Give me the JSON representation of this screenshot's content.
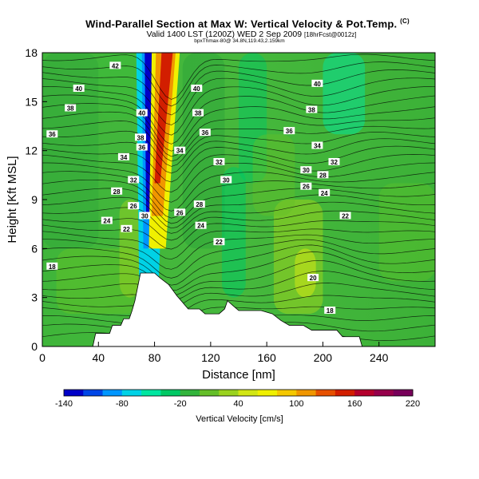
{
  "chart_data": {
    "type": "heatmap",
    "title": "Wind-Parallel Section at Max W: Vertical Velocity & Pot.Temp.",
    "title_mark": "(C)",
    "subtitle": "Valid 1400 LST (1200Z) WED 2 Sep 2009",
    "subtitle_run": "[18hrFcst@0012z]",
    "credit": "bpxThmax-80@ 34.8N,119.43,2.159km",
    "xlabel": "Distance [nm]",
    "ylabel": "Height [Kft MSL]",
    "xlim": [
      0,
      280
    ],
    "ylim": [
      0,
      18
    ],
    "xticks": [
      0,
      40,
      80,
      120,
      160,
      200,
      240
    ],
    "yticks": [
      0,
      3,
      6,
      9,
      12,
      15,
      18
    ],
    "colorbar": {
      "label": "Vertical Velocity [cm/s]",
      "ticks": [
        -140,
        -80,
        -20,
        40,
        100,
        160,
        220
      ],
      "colors": [
        "#0000c8",
        "#0046e6",
        "#0096ff",
        "#00d2e6",
        "#00e6a0",
        "#00c864",
        "#32b43c",
        "#64be28",
        "#9ad21e",
        "#d2e614",
        "#f0f000",
        "#f5c800",
        "#f09600",
        "#e65000",
        "#d21e00",
        "#b4002d",
        "#96004b",
        "#78005a"
      ],
      "range": [
        -140,
        220
      ]
    },
    "terrain": [
      [
        0,
        0
      ],
      [
        36,
        0
      ],
      [
        38,
        0.8
      ],
      [
        48,
        0.8
      ],
      [
        50,
        1.3
      ],
      [
        56,
        1.3
      ],
      [
        58,
        1.7
      ],
      [
        62,
        1.7
      ],
      [
        64,
        2.2
      ],
      [
        66,
        2.8
      ],
      [
        70,
        4.5
      ],
      [
        80,
        4.5
      ],
      [
        84,
        4.2
      ],
      [
        90,
        3.8
      ],
      [
        96,
        3.1
      ],
      [
        100,
        2.7
      ],
      [
        104,
        2.3
      ],
      [
        112,
        2.3
      ],
      [
        116,
        2.0
      ],
      [
        126,
        2.0
      ],
      [
        130,
        2.3
      ],
      [
        132,
        2.8
      ],
      [
        136,
        2.5
      ],
      [
        140,
        2.2
      ],
      [
        150,
        2.2
      ],
      [
        156,
        2.2
      ],
      [
        164,
        2.0
      ],
      [
        170,
        1.6
      ],
      [
        176,
        1.3
      ],
      [
        186,
        1.3
      ],
      [
        192,
        1.0
      ],
      [
        210,
        1.0
      ],
      [
        214,
        0.6
      ],
      [
        226,
        0.6
      ],
      [
        228,
        0.0
      ],
      [
        280,
        0.0
      ]
    ],
    "updraft_core": {
      "x_center_at_top": 88,
      "x_center_at_base": 82,
      "peak_cm_s": 220
    },
    "downdraft_core": {
      "x_center_at_top": 78,
      "x_center_at_base": 76,
      "peak_cm_s": -140
    },
    "isentrope_labels": [
      {
        "text": "42",
        "x": 52,
        "y": 17.2
      },
      {
        "text": "40",
        "x": 26,
        "y": 15.8
      },
      {
        "text": "38",
        "x": 20,
        "y": 14.6
      },
      {
        "text": "36",
        "x": 7,
        "y": 13.0
      },
      {
        "text": "34",
        "x": 58,
        "y": 11.6
      },
      {
        "text": "32",
        "x": 65,
        "y": 10.2
      },
      {
        "text": "30",
        "x": 73,
        "y": 8.0
      },
      {
        "text": "28",
        "x": 53,
        "y": 9.5
      },
      {
        "text": "26",
        "x": 65,
        "y": 8.6
      },
      {
        "text": "24",
        "x": 46,
        "y": 7.7
      },
      {
        "text": "22",
        "x": 60,
        "y": 7.2
      },
      {
        "text": "18",
        "x": 7,
        "y": 4.9
      },
      {
        "text": "40",
        "x": 71,
        "y": 14.3
      },
      {
        "text": "38",
        "x": 70,
        "y": 12.8
      },
      {
        "text": "36",
        "x": 71,
        "y": 12.2
      },
      {
        "text": "40",
        "x": 110,
        "y": 15.8
      },
      {
        "text": "38",
        "x": 111,
        "y": 14.3
      },
      {
        "text": "36",
        "x": 116,
        "y": 13.1
      },
      {
        "text": "34",
        "x": 98,
        "y": 12.0
      },
      {
        "text": "32",
        "x": 126,
        "y": 11.3
      },
      {
        "text": "30",
        "x": 131,
        "y": 10.2
      },
      {
        "text": "28",
        "x": 112,
        "y": 8.7
      },
      {
        "text": "26",
        "x": 98,
        "y": 8.2
      },
      {
        "text": "24",
        "x": 113,
        "y": 7.4
      },
      {
        "text": "22",
        "x": 126,
        "y": 6.4
      },
      {
        "text": "40",
        "x": 196,
        "y": 16.1
      },
      {
        "text": "38",
        "x": 192,
        "y": 14.5
      },
      {
        "text": "36",
        "x": 176,
        "y": 13.2
      },
      {
        "text": "34",
        "x": 196,
        "y": 12.3
      },
      {
        "text": "32",
        "x": 208,
        "y": 11.3
      },
      {
        "text": "30",
        "x": 188,
        "y": 10.8
      },
      {
        "text": "28",
        "x": 200,
        "y": 10.5
      },
      {
        "text": "26",
        "x": 188,
        "y": 9.8
      },
      {
        "text": "24",
        "x": 201,
        "y": 9.4
      },
      {
        "text": "22",
        "x": 216,
        "y": 8.0
      },
      {
        "text": "20",
        "x": 193,
        "y": 4.2
      },
      {
        "text": "18",
        "x": 205,
        "y": 2.2
      }
    ]
  }
}
